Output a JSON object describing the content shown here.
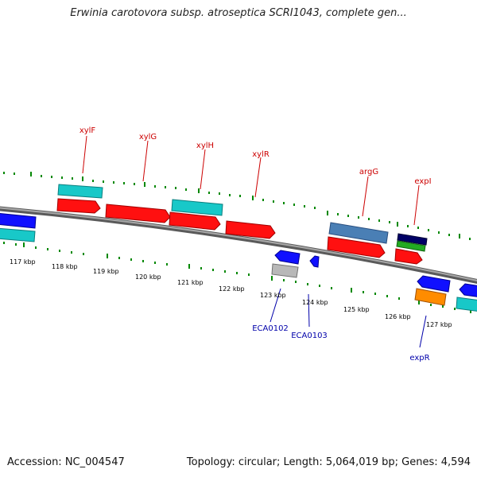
{
  "title": "Erwinia carotovora subsp. atroseptica SCRI1043, complete gen...",
  "accession": "Accession: NC_004547",
  "summary": "Topology: circular; Length: 5,064,019 bp; Genes: 4,594",
  "colors": {
    "forward_gene": "#ff0000",
    "reverse_gene": "#0000ff",
    "cyan_gene": "#00c8c8",
    "steelblue_gene": "#4a7fb5",
    "orange_gene": "#ff8c00",
    "gray_gene": "#b8b8b8",
    "green_gene": "#22aa22",
    "navy_gene": "#000066",
    "top_label": "#cc0000",
    "bottom_label": "#0000aa",
    "dotted_track": "#008800",
    "backbone": "#808080"
  },
  "kbp_labels": [
    "117 kbp",
    "118 kbp",
    "119 kbp",
    "120 kbp",
    "121 kbp",
    "122 kbp",
    "123 kbp",
    "124 kbp",
    "125 kbp",
    "126 kbp",
    "127 kbp"
  ],
  "top_gene_labels": [
    "xylF",
    "xylG",
    "xylH",
    "xylR",
    "argG",
    "expI"
  ],
  "bottom_gene_labels": [
    "ECA0102",
    "ECA0103",
    "expR"
  ]
}
